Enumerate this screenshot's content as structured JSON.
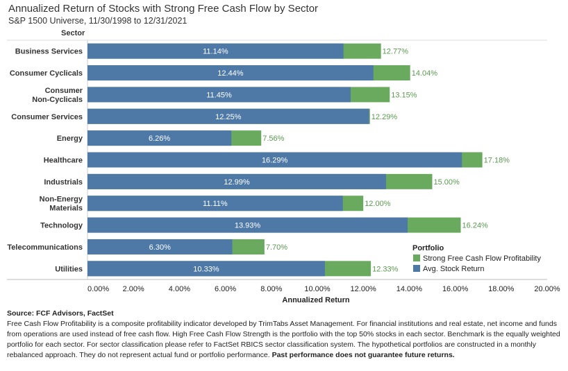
{
  "title": "Annualized Return of Stocks with Strong Free Cash Flow by Sector",
  "subtitle": "S&P 1500 Universe, 11/30/1998 to 12/31/2021",
  "source": "Source: FCF Advisors, FactSet",
  "note": "Free Cash Flow Profitability is a composite profitability indicator developed by TrimTabs Asset Management. For financial institutions and real estate, net income and funds from operations are used instead of free cash flow. High Free Cash Flow Strength is the portfolio with the top 50% stocks in each sector. Benchmark is the equally weighted portfolio for each sector. For sector classification please refer to FactSet RBICS sector classification system. The hypothetical portfolios are constructed in a monthly rebalanced approach. They do not represent actual fund or portfolio performance.",
  "note_bold": "Past performance does not guarantee future returns.",
  "chart_data": {
    "type": "bar",
    "orientation": "horizontal",
    "overlay": true,
    "ylabel": "Sector",
    "xlabel": "Annualized Return",
    "xlim": [
      0,
      20
    ],
    "xticks": [
      "0.00%",
      "2.00%",
      "4.00%",
      "6.00%",
      "8.00%",
      "10.00%",
      "12.00%",
      "14.00%",
      "16.00%",
      "18.00%",
      "20.00%"
    ],
    "categories": [
      [
        "Business Services"
      ],
      [
        "Consumer Cyclicals"
      ],
      [
        "Consumer",
        "Non-Cyclicals"
      ],
      [
        "Consumer Services"
      ],
      [
        "Energy"
      ],
      [
        "Healthcare"
      ],
      [
        "Industrials"
      ],
      [
        "Non-Energy",
        "Materials"
      ],
      [
        "Technology"
      ],
      [
        "Telecommunications"
      ],
      [
        "Utilities"
      ]
    ],
    "legend_title": "Portfolio",
    "legend_position": "right",
    "series": [
      {
        "name": "Strong Free Cash Flow Profitability",
        "color": "#6aaa5f",
        "values": [
          12.77,
          14.04,
          13.15,
          12.29,
          7.56,
          17.18,
          15.0,
          12.0,
          16.24,
          7.7,
          12.33
        ],
        "labels": [
          "12.77%",
          "14.04%",
          "13.15%",
          "12.29%",
          "7.56%",
          "17.18%",
          "15.00%",
          "12.00%",
          "16.24%",
          "7.70%",
          "12.33%"
        ]
      },
      {
        "name": "Avg. Stock Return",
        "color": "#4e79a7",
        "values": [
          11.14,
          12.44,
          11.45,
          12.25,
          6.26,
          16.29,
          12.99,
          11.11,
          13.93,
          6.3,
          10.33
        ],
        "labels": [
          "11.14%",
          "12.44%",
          "11.45%",
          "12.25%",
          "6.26%",
          "16.29%",
          "12.99%",
          "11.11%",
          "13.93%",
          "6.30%",
          "10.33%"
        ]
      }
    ]
  }
}
